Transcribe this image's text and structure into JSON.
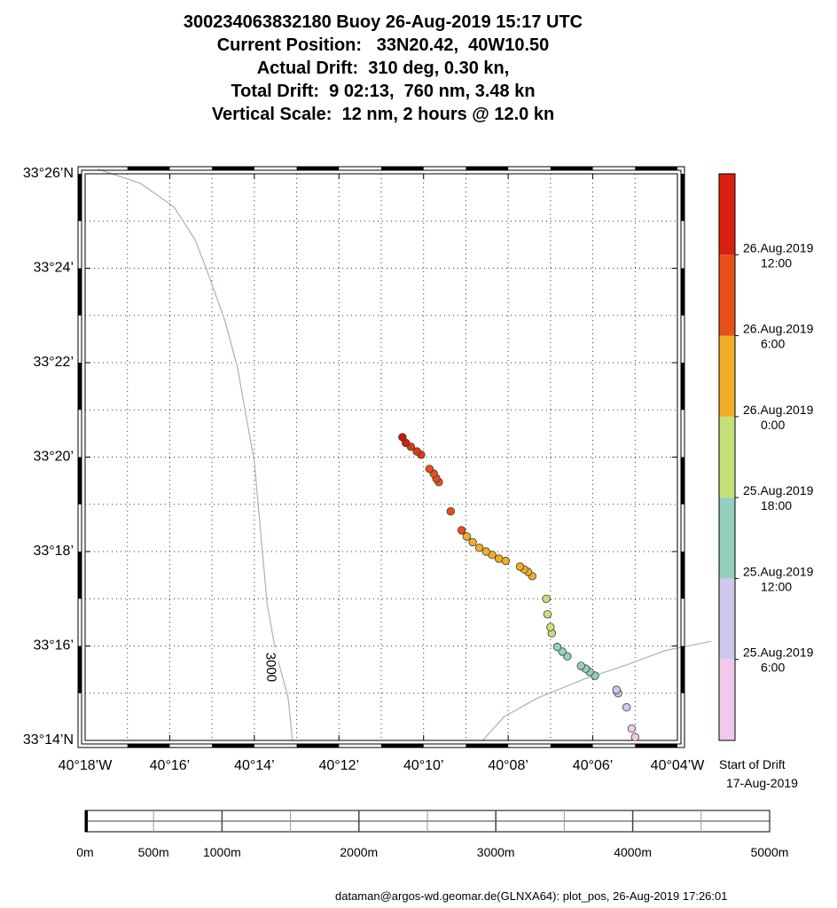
{
  "title": {
    "line1": "300234063832180 Buoy 26-Aug-2019 15:17 UTC",
    "line2": "Current Position:   33N20.42,  40W10.50",
    "line3": "Actual Drift:  310 deg, 0.30 kn,",
    "line4": "Total Drift:  9 02:13,  760 nm, 3.48 kn",
    "line5": "Vertical Scale:  12 nm, 2 hours @ 12.0 kn"
  },
  "map": {
    "lat_range_min": [
      14,
      26
    ],
    "lon_range_min": [
      18,
      4
    ],
    "lat_labels": [
      {
        "value": 26,
        "label": "33°26’N"
      },
      {
        "value": 24,
        "label": "33°24’"
      },
      {
        "value": 22,
        "label": "33°22’"
      },
      {
        "value": 20,
        "label": "33°20’"
      },
      {
        "value": 18,
        "label": "33°18’"
      },
      {
        "value": 16,
        "label": "33°16’"
      },
      {
        "value": 14,
        "label": "33°14’N"
      }
    ],
    "lon_labels": [
      {
        "value": 18,
        "label": "40°18’W"
      },
      {
        "value": 16,
        "label": "40°16’"
      },
      {
        "value": 14,
        "label": "40°14’"
      },
      {
        "value": 12,
        "label": "40°12’"
      },
      {
        "value": 10,
        "label": "40°10’"
      },
      {
        "value": 8,
        "label": "40°08’"
      },
      {
        "value": 6,
        "label": "40°06’"
      },
      {
        "value": 4,
        "label": "40°04’W"
      }
    ],
    "contour_label": "3000",
    "contour_color": "#9fb4c2",
    "contour_west": [
      [
        13.1,
        14.0
      ],
      [
        13.2,
        14.9
      ],
      [
        13.5,
        15.9
      ],
      [
        13.7,
        16.9
      ],
      [
        13.8,
        17.9
      ],
      [
        13.9,
        18.9
      ],
      [
        14.0,
        19.9
      ],
      [
        14.2,
        20.9
      ],
      [
        14.4,
        21.9
      ],
      [
        14.7,
        22.9
      ],
      [
        15.1,
        23.9
      ],
      [
        15.4,
        24.6
      ],
      [
        15.9,
        25.3
      ],
      [
        16.7,
        25.8
      ],
      [
        17.7,
        26.1
      ]
    ],
    "contour_east": [
      [
        8.6,
        14.0
      ],
      [
        8.1,
        14.5
      ],
      [
        7.3,
        14.9
      ],
      [
        6.2,
        15.3
      ],
      [
        5.2,
        15.6
      ],
      [
        4.3,
        15.9
      ],
      [
        3.2,
        16.1
      ]
    ]
  },
  "chart_data": {
    "type": "scatter",
    "x_label": "longitude (min past 40°W, decreasing eastward)",
    "y_label": "latitude (min past 33°N)",
    "points": [
      {
        "lon": 5.0,
        "lat": 14.07,
        "c": "#f2c8ec"
      },
      {
        "lon": 5.08,
        "lat": 14.25,
        "c": "#f2c8ec"
      },
      {
        "lon": 5.2,
        "lat": 14.7,
        "c": "#cfc8ea"
      },
      {
        "lon": 5.4,
        "lat": 15.0,
        "c": "#cfc8ea"
      },
      {
        "lon": 5.44,
        "lat": 15.07,
        "c": "#cfc8ea"
      },
      {
        "lon": 5.95,
        "lat": 15.37,
        "c": "#93d0bd"
      },
      {
        "lon": 6.07,
        "lat": 15.45,
        "c": "#93d0bd"
      },
      {
        "lon": 6.17,
        "lat": 15.52,
        "c": "#93d0bd"
      },
      {
        "lon": 6.28,
        "lat": 15.58,
        "c": "#93d0bd"
      },
      {
        "lon": 6.6,
        "lat": 15.78,
        "c": "#93d0bd"
      },
      {
        "lon": 6.72,
        "lat": 15.88,
        "c": "#93d0bd"
      },
      {
        "lon": 6.84,
        "lat": 15.98,
        "c": "#93d0bd"
      },
      {
        "lon": 6.97,
        "lat": 16.27,
        "c": "#c6e079"
      },
      {
        "lon": 7.0,
        "lat": 16.4,
        "c": "#c6e079"
      },
      {
        "lon": 7.07,
        "lat": 16.67,
        "c": "#c6e079"
      },
      {
        "lon": 7.1,
        "lat": 17.0,
        "c": "#c6e079"
      },
      {
        "lon": 7.43,
        "lat": 17.48,
        "c": "#f2ad27"
      },
      {
        "lon": 7.53,
        "lat": 17.57,
        "c": "#f2ad27"
      },
      {
        "lon": 7.62,
        "lat": 17.62,
        "c": "#f2ad27"
      },
      {
        "lon": 7.72,
        "lat": 17.68,
        "c": "#f2ad27"
      },
      {
        "lon": 8.06,
        "lat": 17.8,
        "c": "#f2ad27"
      },
      {
        "lon": 8.22,
        "lat": 17.85,
        "c": "#f2ad27"
      },
      {
        "lon": 8.38,
        "lat": 17.93,
        "c": "#f2ad27"
      },
      {
        "lon": 8.52,
        "lat": 18.0,
        "c": "#f2ad27"
      },
      {
        "lon": 8.68,
        "lat": 18.08,
        "c": "#f2ad27"
      },
      {
        "lon": 8.84,
        "lat": 18.2,
        "c": "#f2ad27"
      },
      {
        "lon": 8.98,
        "lat": 18.32,
        "c": "#f2ad27"
      },
      {
        "lon": 9.1,
        "lat": 18.45,
        "c": "#e8501a"
      },
      {
        "lon": 9.36,
        "lat": 18.85,
        "c": "#e8501a"
      },
      {
        "lon": 9.64,
        "lat": 19.47,
        "c": "#e8501a"
      },
      {
        "lon": 9.7,
        "lat": 19.55,
        "c": "#e8501a"
      },
      {
        "lon": 9.76,
        "lat": 19.65,
        "c": "#e8501a"
      },
      {
        "lon": 9.86,
        "lat": 19.75,
        "c": "#e8501a"
      },
      {
        "lon": 10.06,
        "lat": 20.05,
        "c": "#e03a14"
      },
      {
        "lon": 10.16,
        "lat": 20.12,
        "c": "#e03a14"
      },
      {
        "lon": 10.3,
        "lat": 20.22,
        "c": "#e03a14"
      },
      {
        "lon": 10.42,
        "lat": 20.3,
        "c": "#d9200e"
      },
      {
        "lon": 10.5,
        "lat": 20.42,
        "c": "#cf1308"
      }
    ]
  },
  "colorbar": {
    "colors": [
      "#f2c8ec",
      "#cfc8ea",
      "#93d0bd",
      "#c6e079",
      "#f2ad27",
      "#e8501a",
      "#d9200e"
    ],
    "labels": [
      {
        "date": "26.Aug.2019",
        "time": "12:00"
      },
      {
        "date": "26.Aug.2019",
        "time": "6:00"
      },
      {
        "date": "26.Aug.2019",
        "time": "0:00"
      },
      {
        "date": "25.Aug.2019",
        "time": "18:00"
      },
      {
        "date": "25.Aug.2019",
        "time": "12:00"
      },
      {
        "date": "25.Aug.2019",
        "time": "6:00"
      }
    ],
    "start_label": "Start of Drift",
    "start_date": "17-Aug-2019"
  },
  "scalebar": {
    "max_m": 5000,
    "labels": [
      {
        "m": 0,
        "label": "0m"
      },
      {
        "m": 500,
        "label": "500m"
      },
      {
        "m": 1000,
        "label": "1000m"
      },
      {
        "m": 2000,
        "label": "2000m"
      },
      {
        "m": 3000,
        "label": "3000m"
      },
      {
        "m": 4000,
        "label": "4000m"
      },
      {
        "m": 5000,
        "label": "5000m"
      }
    ]
  },
  "footer": {
    "credit": "dataman@argos-wd.geomar.de(GLNXA64): plot_pos, 26-Aug-2019 17:26:01"
  }
}
